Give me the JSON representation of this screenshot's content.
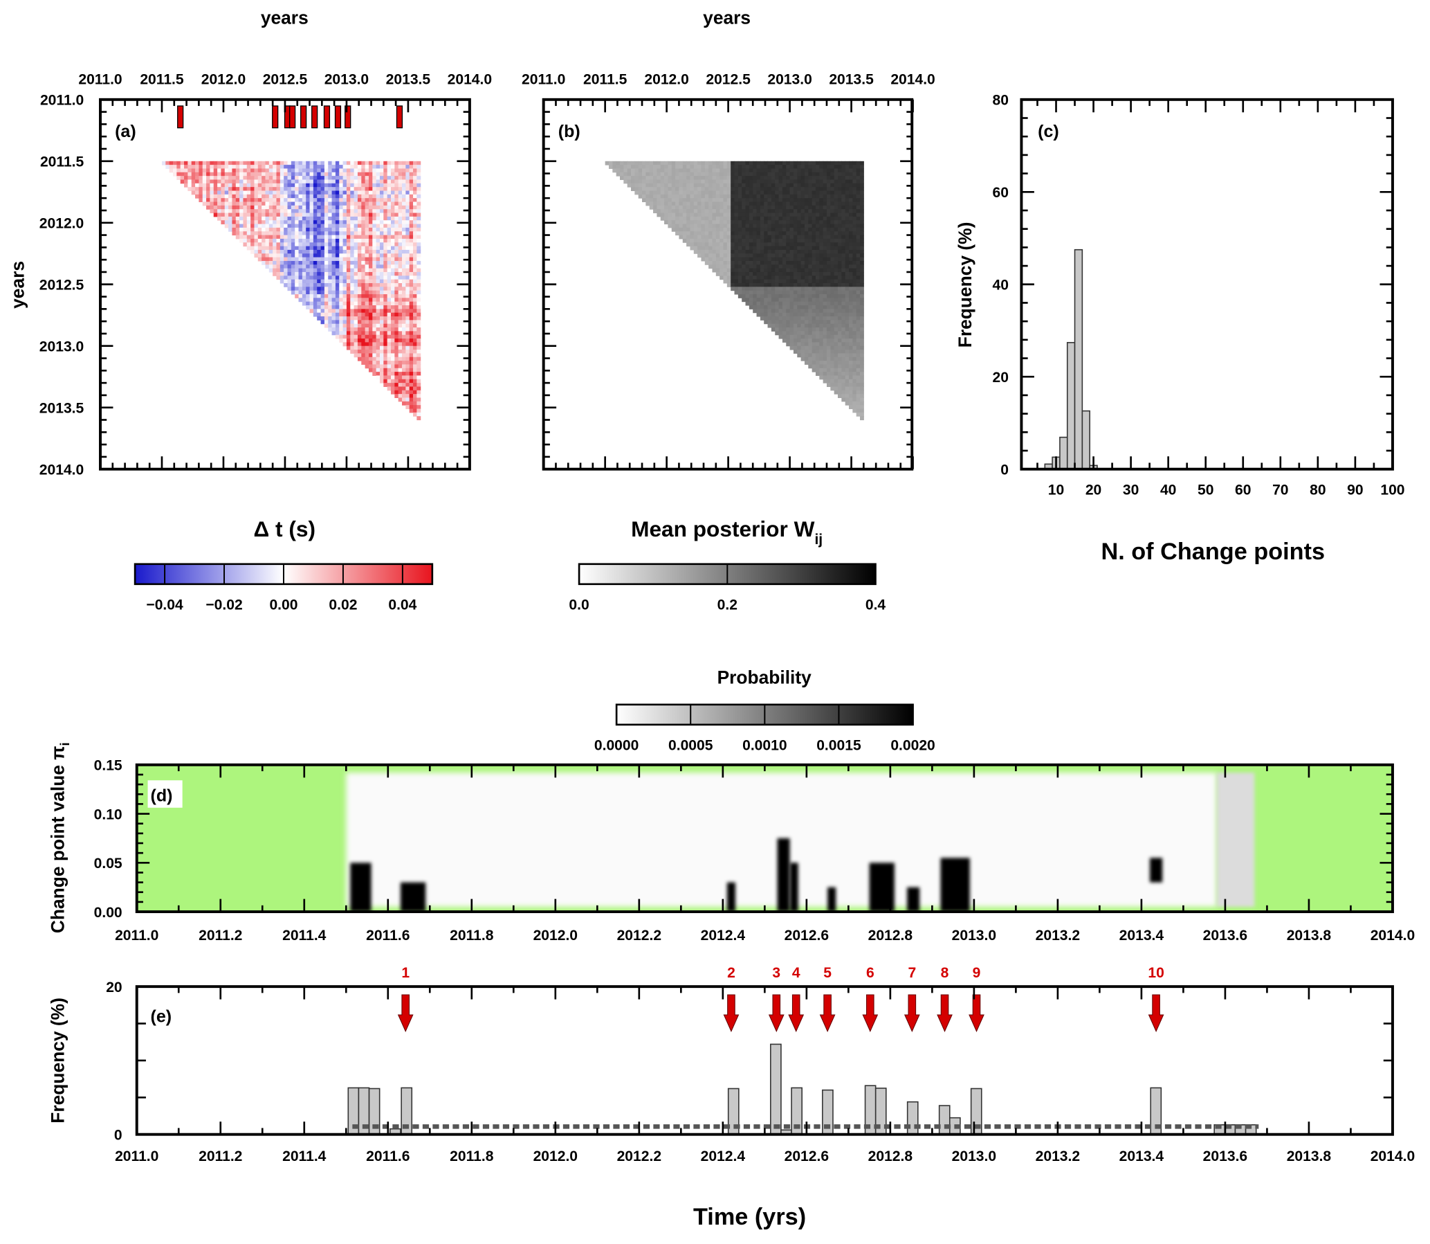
{
  "chart_data": [
    {
      "panel": "(a)",
      "type": "heatmap",
      "top_xlabel": "years",
      "ylabel": "years",
      "x_ticks": [
        "2011.0",
        "2011.5",
        "2012.0",
        "2012.5",
        "2013.0",
        "2013.5",
        "2014.0"
      ],
      "y_ticks": [
        "2011.0",
        "2011.5",
        "2012.0",
        "2012.5",
        "2013.0",
        "2013.5",
        "2014.0"
      ],
      "xlim": [
        2011.0,
        2014.0
      ],
      "ylim": [
        2011.0,
        2014.0
      ],
      "data_extent": [
        2011.5,
        2013.6
      ],
      "change_point_markers": [
        2011.65,
        2012.42,
        2012.52,
        2012.56,
        2012.65,
        2012.74,
        2012.84,
        2012.93,
        2013.01,
        2013.43
      ],
      "colorbar": {
        "title": "Δ t (s)",
        "ticks": [
          "−0.04",
          "−0.02",
          "0.00",
          "0.02",
          "0.04"
        ],
        "range": [
          -0.05,
          0.05
        ],
        "colors": [
          "#1a1acc",
          "#ffffff",
          "#e8141e"
        ]
      }
    },
    {
      "panel": "(b)",
      "type": "heatmap",
      "top_xlabel": "years",
      "x_ticks": [
        "2011.0",
        "2011.5",
        "2012.0",
        "2012.5",
        "2013.0",
        "2013.5",
        "2014.0"
      ],
      "xlim": [
        2011.0,
        2014.0
      ],
      "ylim": [
        2011.0,
        2014.0
      ],
      "colorbar": {
        "title": "Mean posterior W",
        "title_sub": "ij",
        "ticks": [
          "0.0",
          "0.2",
          "0.4"
        ],
        "range": [
          0,
          0.4
        ],
        "colors": [
          "#ffffff",
          "#000000"
        ]
      }
    },
    {
      "panel": "(c)",
      "type": "bar",
      "xlabel": "N. of Change points",
      "ylabel": "Frequency (%)",
      "xlim": [
        0,
        100
      ],
      "ylim": [
        0,
        80
      ],
      "x_ticks": [
        "10",
        "20",
        "30",
        "40",
        "50",
        "60",
        "70",
        "80",
        "90",
        "100"
      ],
      "y_ticks": [
        "0",
        "20",
        "40",
        "60",
        "80"
      ],
      "bins": [
        [
          7,
          9
        ],
        [
          9,
          11
        ],
        [
          11,
          13
        ],
        [
          13,
          15
        ],
        [
          15,
          17
        ],
        [
          17,
          19
        ],
        [
          19,
          21
        ]
      ],
      "values": [
        1.1,
        2.6,
        6.9,
        27.4,
        47.5,
        12.6,
        0.8
      ],
      "bar_color": "#c8c8c8"
    },
    {
      "panel": "(d)",
      "type": "heatmap",
      "ylabel": "Change point value π",
      "ylabel_sub": "i",
      "xlim": [
        2011.0,
        2014.0
      ],
      "ylim": [
        0,
        0.15
      ],
      "x_ticks": [
        "2011.0",
        "2011.2",
        "2011.4",
        "2011.6",
        "2011.8",
        "2012.0",
        "2012.2",
        "2012.4",
        "2012.6",
        "2012.8",
        "2013.0",
        "2013.2",
        "2013.4",
        "2013.6",
        "2013.8",
        "2014.0"
      ],
      "y_ticks": [
        "0.00",
        "0.05",
        "0.10",
        "0.15"
      ],
      "background_color": "#adf57d",
      "data_extent": [
        2011.5,
        2013.67
      ],
      "high_probability_regions": [
        {
          "x": [
            2011.51,
            2011.56
          ],
          "y": [
            0,
            0.05
          ]
        },
        {
          "x": [
            2011.63,
            2011.69
          ],
          "y": [
            0,
            0.03
          ]
        },
        {
          "x": [
            2012.41,
            2012.43
          ],
          "y": [
            0,
            0.03
          ]
        },
        {
          "x": [
            2012.53,
            2012.56
          ],
          "y": [
            0,
            0.075
          ]
        },
        {
          "x": [
            2012.56,
            2012.58
          ],
          "y": [
            0,
            0.05
          ]
        },
        {
          "x": [
            2012.65,
            2012.67
          ],
          "y": [
            0,
            0.025
          ]
        },
        {
          "x": [
            2012.75,
            2012.81
          ],
          "y": [
            0,
            0.05
          ]
        },
        {
          "x": [
            2012.84,
            2012.87
          ],
          "y": [
            0,
            0.025
          ]
        },
        {
          "x": [
            2012.92,
            2012.99
          ],
          "y": [
            0,
            0.055
          ]
        },
        {
          "x": [
            2013.42,
            2013.45
          ],
          "y": [
            0.03,
            0.055
          ]
        }
      ],
      "colorbar": {
        "title": "Probability",
        "ticks": [
          "0.0000",
          "0.0005",
          "0.0010",
          "0.0015",
          "0.0020"
        ],
        "range": [
          0,
          0.002
        ]
      }
    },
    {
      "panel": "(e)",
      "type": "bar",
      "xlabel": "Time (yrs)",
      "ylabel": "Frequency (%)",
      "xlim": [
        2011.0,
        2014.0
      ],
      "ylim": [
        0,
        20
      ],
      "x_ticks": [
        "2011.0",
        "2011.2",
        "2011.4",
        "2011.6",
        "2011.8",
        "2012.0",
        "2012.2",
        "2012.4",
        "2012.6",
        "2012.8",
        "2013.0",
        "2013.2",
        "2013.4",
        "2013.6",
        "2013.8",
        "2014.0"
      ],
      "y_ticks": [
        "0",
        "20"
      ],
      "bin_width": 0.025,
      "bin_starts": [
        2011.505,
        2011.53,
        2011.555,
        2011.605,
        2011.632,
        2012.413,
        2012.514,
        2012.539,
        2012.564,
        2012.638,
        2012.74,
        2012.765,
        2012.841,
        2012.917,
        2012.942,
        2012.993,
        2013.422,
        2013.574,
        2013.599,
        2013.624,
        2013.649
      ],
      "values": [
        6.3,
        6.3,
        6.2,
        0.75,
        6.3,
        6.2,
        12.2,
        0.6,
        6.3,
        6.0,
        6.6,
        6.25,
        4.4,
        3.9,
        2.25,
        6.2,
        6.3,
        1.3,
        1.3,
        1.3,
        1.3
      ],
      "threshold_line": 1.06,
      "change_points": [
        {
          "label": "1",
          "x": 2011.642
        },
        {
          "label": "2",
          "x": 2012.42
        },
        {
          "label": "3",
          "x": 2012.528
        },
        {
          "label": "4",
          "x": 2012.575
        },
        {
          "label": "5",
          "x": 2012.65
        },
        {
          "label": "6",
          "x": 2012.752
        },
        {
          "label": "7",
          "x": 2012.852
        },
        {
          "label": "8",
          "x": 2012.93
        },
        {
          "label": "9",
          "x": 2013.006
        },
        {
          "label": "10",
          "x": 2013.435
        }
      ],
      "arrow_color": "#d40000",
      "bar_color": "#c8c8c8"
    }
  ]
}
